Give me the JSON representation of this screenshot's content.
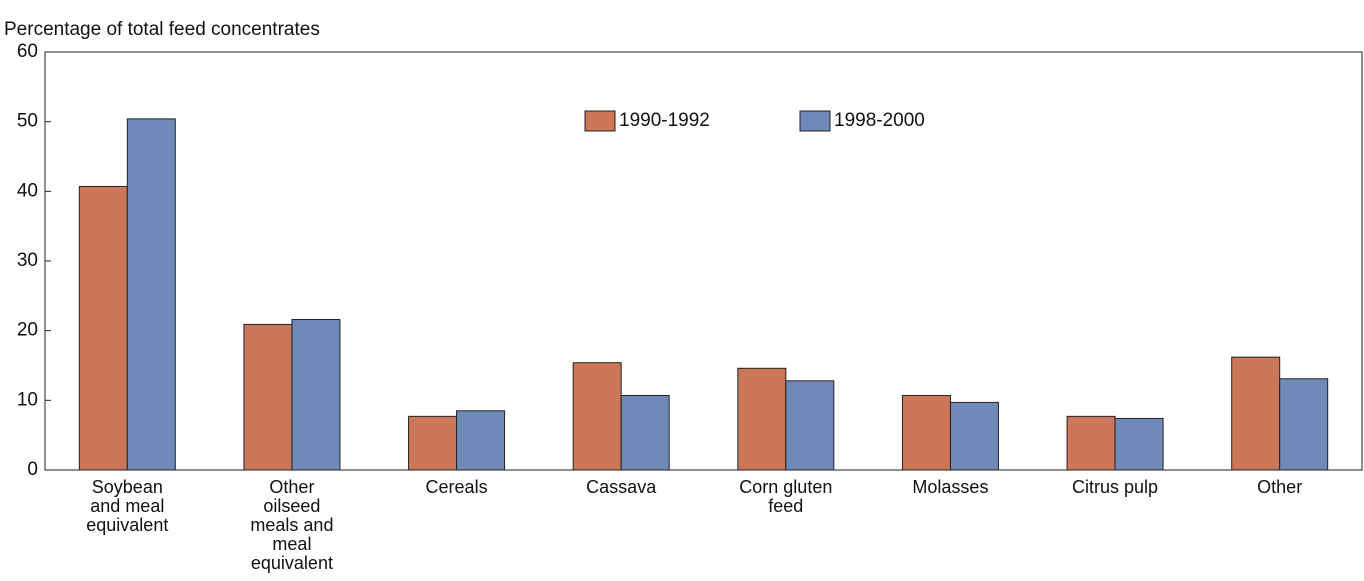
{
  "chart_data": {
    "type": "bar",
    "y_axis_label": "Percentage of total feed concentrates",
    "categories": [
      "Soybean and meal equivalent",
      "Other oilseed meals and meal equivalent",
      "Cereals",
      "Cassava",
      "Corn gluten feed",
      "Molasses",
      "Citrus pulp",
      "Other"
    ],
    "series": [
      {
        "name": "1990-1992",
        "color": "#cc775a",
        "values": [
          40.7,
          20.9,
          7.7,
          15.4,
          14.6,
          10.7,
          7.7,
          16.2
        ]
      },
      {
        "name": "1998-2000",
        "color": "#6f8ab8",
        "values": [
          50.4,
          21.6,
          8.5,
          10.7,
          12.8,
          9.7,
          7.4,
          13.1
        ]
      }
    ],
    "ylim": [
      0,
      60
    ],
    "yticks": [
      0,
      10,
      20,
      30,
      40,
      50,
      60
    ],
    "grid": false,
    "legend": "top"
  }
}
